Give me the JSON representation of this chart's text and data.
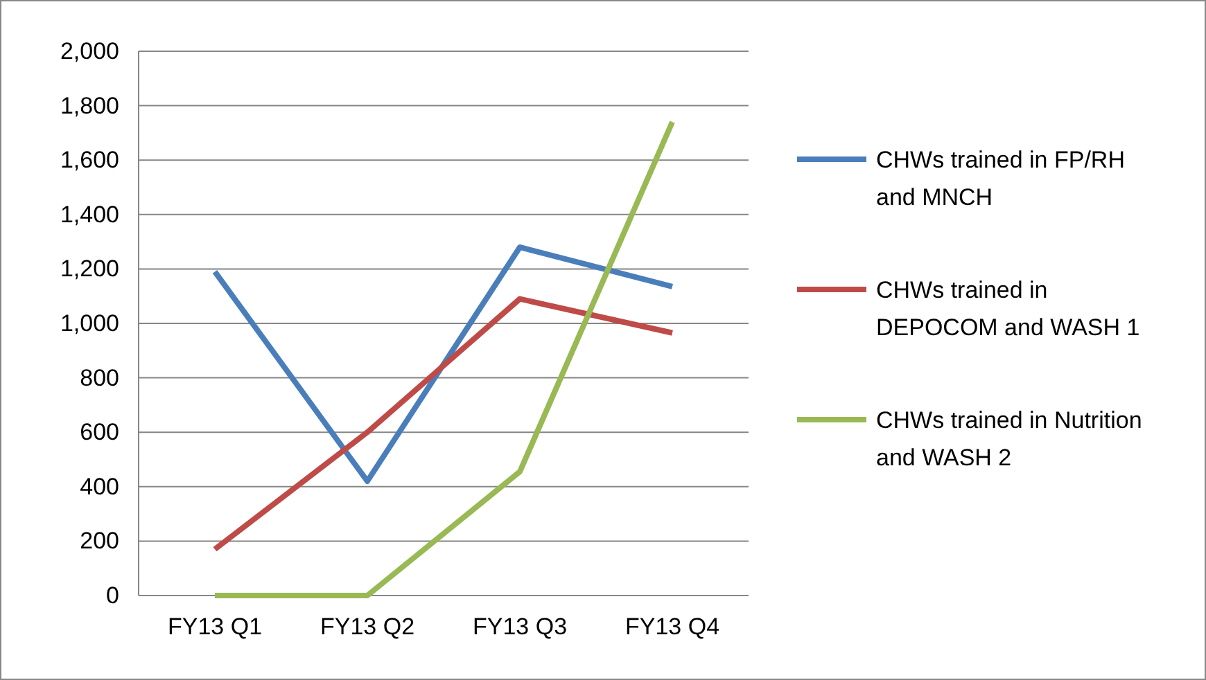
{
  "chart_data": {
    "type": "line",
    "categories": [
      "FY13 Q1",
      "FY13 Q2",
      "FY13 Q3",
      "FY13 Q4"
    ],
    "series": [
      {
        "name": "CHWs trained in FP/RH and MNCH",
        "color": "#4a7ebb",
        "values": [
          1190,
          420,
          1280,
          1135
        ]
      },
      {
        "name": "CHWs trained in DEPOCOM and WASH 1",
        "color": "#be4b48",
        "values": [
          170,
          600,
          1090,
          965
        ]
      },
      {
        "name": "CHWs trained in Nutrition and WASH 2",
        "color": "#98b954",
        "values": [
          0,
          0,
          455,
          1740
        ]
      }
    ],
    "ylim": [
      0,
      2000
    ],
    "yticks": [
      {
        "value": 0,
        "label": "0"
      },
      {
        "value": 200,
        "label": "200"
      },
      {
        "value": 400,
        "label": "400"
      },
      {
        "value": 600,
        "label": "600"
      },
      {
        "value": 800,
        "label": "800"
      },
      {
        "value": 1000,
        "label": "1,000"
      },
      {
        "value": 1200,
        "label": "1,200"
      },
      {
        "value": 1400,
        "label": "1,400"
      },
      {
        "value": 1600,
        "label": "1,600"
      },
      {
        "value": 1800,
        "label": "1,800"
      },
      {
        "value": 2000,
        "label": "2,000"
      }
    ],
    "grid": "y",
    "legend": "right",
    "marker": "none",
    "line_style": "solid"
  }
}
